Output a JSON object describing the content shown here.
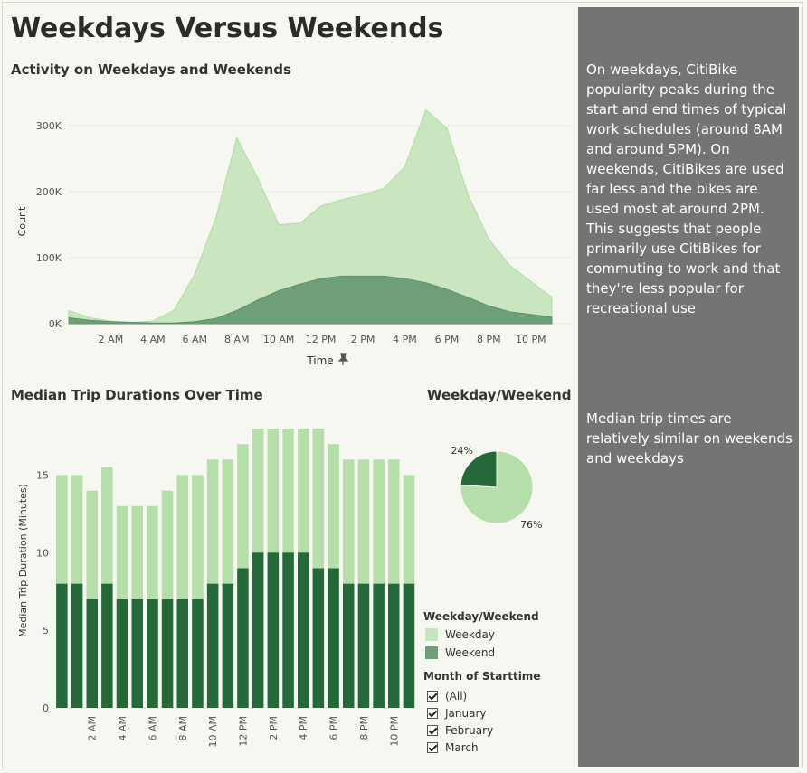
{
  "dashboard": {
    "title": "Weekdays Versus Weekends",
    "story": [
      "On weekdays, CitiBike popularity peaks during the start and end times of typical work schedules (around 8AM and around 5PM). On weekends, CitiBikes are used far less and the bikes are used most at around 2PM. This suggests that people primarily use CitiBikes for commuting to work and that they're less popular for recreational use",
      "Median trip times are relatively similar on weekends and weekdays"
    ]
  },
  "colors": {
    "weekday": "#b9dfae",
    "weekend": "#6f9f78",
    "bar_weekday": "#b5deaa",
    "bar_weekend": "#25683a",
    "pie_weekday": "#b5deaa",
    "pie_weekend": "#25683a"
  },
  "legend": {
    "title": "Weekday/Weekend",
    "items": [
      "Weekday",
      "Weekend"
    ]
  },
  "filter": {
    "title": "Month of Starttime",
    "options": [
      "(All)",
      "January",
      "February",
      "March"
    ],
    "checked": [
      true,
      true,
      true,
      true
    ]
  },
  "chart_data": [
    {
      "type": "area",
      "title": "Activity on Weekdays and Weekends",
      "xlabel": "Time",
      "ylabel": "Count",
      "x": [
        0,
        1,
        2,
        3,
        4,
        5,
        6,
        7,
        8,
        9,
        10,
        11,
        12,
        13,
        14,
        15,
        16,
        17,
        18,
        19,
        20,
        21,
        22,
        23
      ],
      "x_tick_values": [
        2,
        4,
        6,
        8,
        10,
        12,
        14,
        16,
        18,
        20,
        22
      ],
      "x_tick_labels": [
        "2 AM",
        "4 AM",
        "6 AM",
        "8 AM",
        "10 AM",
        "12 PM",
        "2 PM",
        "4 PM",
        "6 PM",
        "8 PM",
        "10 PM"
      ],
      "y_ticks": [
        0,
        100000,
        200000,
        300000
      ],
      "y_tick_labels": [
        "0K",
        "100K",
        "200K",
        "300K"
      ],
      "ylim": [
        0,
        330000
      ],
      "series": [
        {
          "name": "Weekday",
          "values": [
            20000,
            9000,
            4000,
            2000,
            4000,
            20000,
            75000,
            160000,
            282000,
            220000,
            150000,
            152000,
            178000,
            188000,
            195000,
            205000,
            238000,
            324000,
            296000,
            196000,
            128000,
            88000,
            64000,
            40000
          ]
        },
        {
          "name": "Weekend",
          "values": [
            9000,
            5000,
            3000,
            2000,
            1000,
            1000,
            3000,
            8000,
            20000,
            36000,
            50000,
            60000,
            68000,
            72000,
            72000,
            72000,
            68000,
            62000,
            52000,
            40000,
            27000,
            18000,
            14000,
            10000
          ]
        }
      ]
    },
    {
      "type": "bar",
      "title": "Median Trip Durations Over Time",
      "ylabel": "Median Trip Duration (Minutes)",
      "x": [
        0,
        1,
        2,
        3,
        4,
        5,
        6,
        7,
        8,
        9,
        10,
        11,
        12,
        13,
        14,
        15,
        16,
        17,
        18,
        19,
        20,
        21,
        22,
        23
      ],
      "x_tick_values": [
        2,
        4,
        6,
        8,
        10,
        12,
        14,
        16,
        18,
        20,
        22
      ],
      "x_tick_labels": [
        "2 AM",
        "4 AM",
        "6 AM",
        "8 AM",
        "10 AM",
        "12 PM",
        "2 PM",
        "4 PM",
        "6 PM",
        "8 PM",
        "10 PM"
      ],
      "y_ticks": [
        0,
        5,
        10,
        15
      ],
      "ylim": [
        0,
        18
      ],
      "series": [
        {
          "name": "Weekday",
          "values": [
            15,
            15,
            14,
            15.5,
            13,
            13,
            13,
            14,
            15,
            15,
            16,
            16,
            17,
            18,
            18,
            18,
            18,
            18,
            17,
            16,
            16,
            16,
            16,
            15
          ]
        },
        {
          "name": "Weekend",
          "values": [
            8,
            8,
            7,
            8,
            7,
            7,
            7,
            7,
            7,
            7,
            8,
            8,
            9,
            10,
            10,
            10,
            10,
            9,
            9,
            8,
            8,
            8,
            8,
            8
          ]
        }
      ]
    },
    {
      "type": "pie",
      "title": "Weekday/Weekend",
      "categories": [
        "Weekday",
        "Weekend"
      ],
      "values": [
        76,
        24
      ],
      "labels": [
        "76%",
        "24%"
      ]
    }
  ]
}
